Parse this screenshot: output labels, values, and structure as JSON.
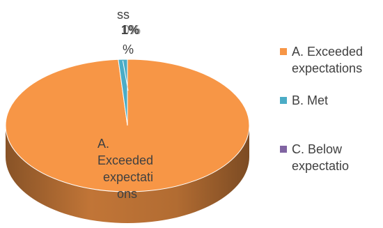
{
  "chart_data": {
    "type": "pie",
    "style": "3d",
    "categories": [
      "A. Exceeded expectations",
      "B. Met",
      "C. Below expectatio"
    ],
    "values": [
      98.8,
      1.2,
      0
    ],
    "colors": [
      "#F79646",
      "#4BACC6",
      "#8064A2"
    ],
    "data_labels": {
      "A": [
        "A.",
        "Exceeded",
        "expectati",
        "ons"
      ],
      "B_top": "ss",
      "B_pct": "1%",
      "B_pct_overlap": "0%",
      "B_pct_suffix": "%"
    },
    "legend": {
      "position": "right",
      "items": [
        {
          "label_line1": "A. Exceeded",
          "label_line2": "expectations",
          "color": "#F79646"
        },
        {
          "label_line1": "B. Met",
          "label_line2": "",
          "color": "#4BACC6"
        },
        {
          "label_line1": "C. Below",
          "label_line2": "expectatio",
          "color": "#8064A2"
        }
      ]
    }
  }
}
